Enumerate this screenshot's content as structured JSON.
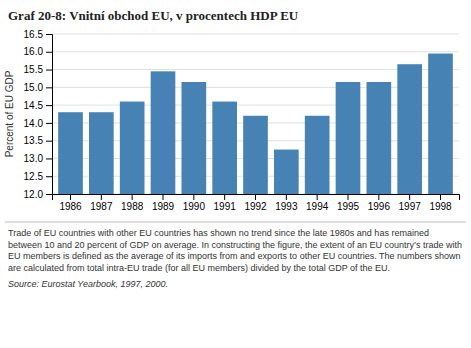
{
  "chart_data": {
    "type": "bar",
    "title": "Graf 20-8: Vnitní obchod EU, v procentech HDP EU",
    "ylabel": "Percent of EU GDP",
    "categories": [
      "1986",
      "1987",
      "1988",
      "1989",
      "1990",
      "1991",
      "1992",
      "1993",
      "1994",
      "1995",
      "1996",
      "1997",
      "1998"
    ],
    "values": [
      14.3,
      14.3,
      14.6,
      15.45,
      15.15,
      14.6,
      14.2,
      13.25,
      14.2,
      15.15,
      15.15,
      15.65,
      15.95
    ],
    "ylim": [
      12.0,
      16.5
    ],
    "yticks": [
      {
        "value": 12.0,
        "label": "12.0"
      },
      {
        "value": 12.5,
        "label": "12.5"
      },
      {
        "value": 13.0,
        "label": "13.0"
      },
      {
        "value": 13.5,
        "label": "13.5"
      },
      {
        "value": 14.0,
        "label": "14.0"
      },
      {
        "value": 14.5,
        "label": "14.5"
      },
      {
        "value": 15.0,
        "label": "15.0"
      },
      {
        "value": 15.5,
        "label": "15.5"
      },
      {
        "value": 16.0,
        "label": "16.0"
      },
      {
        "value": 16.5,
        "label": "16.5"
      }
    ],
    "grid": true,
    "caption": "Trade of EU countries with other EU countries has shown no trend since the late 1980s and has remained between 10 and 20 percent of GDP on average. In constructing the figure, the extent of an EU country’s trade with EU members is defined as the average of its imports from and exports to other EU countries. The numbers shown are calculated from total intra-EU trade (for all EU members) divided by the total GDP of the EU.",
    "source": "Source: Eurostat Yearbook, 1997, 2000."
  }
}
